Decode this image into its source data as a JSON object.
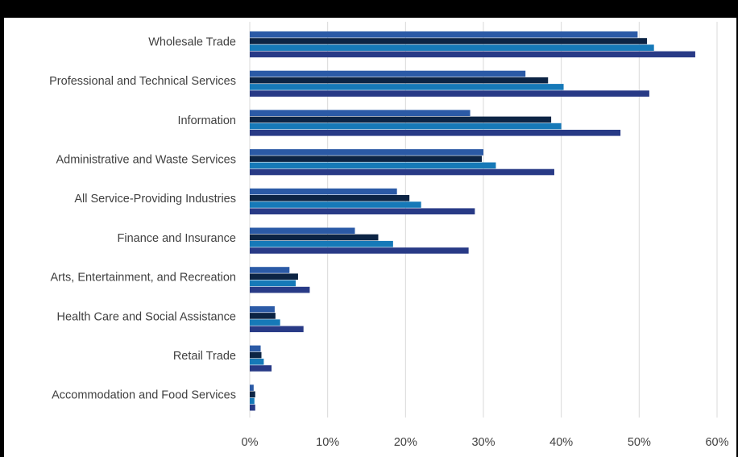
{
  "chart_data": {
    "type": "bar",
    "orientation": "horizontal",
    "title": "",
    "xlabel": "",
    "ylabel": "",
    "categories": [
      "Wholesale Trade",
      "Professional and Technical Services",
      "Information",
      "Administrative and Waste Services",
      "All Service-Providing Industries",
      "Finance and Insurance",
      "Arts, Entertainment, and Recreation",
      "Health Care and Social Assistance",
      "Retail Trade",
      "Accommodation and Food Services"
    ],
    "series": [
      {
        "color": "#2b5aa6",
        "values": [
          49.8,
          35.4,
          28.3,
          30.0,
          18.9,
          13.5,
          5.1,
          3.2,
          1.4,
          0.5
        ]
      },
      {
        "color": "#0c2444",
        "values": [
          51.0,
          38.3,
          38.7,
          29.8,
          20.5,
          16.5,
          6.2,
          3.3,
          1.5,
          0.7
        ]
      },
      {
        "color": "#1679b8",
        "values": [
          51.9,
          40.3,
          40.0,
          31.6,
          22.0,
          18.4,
          5.9,
          3.9,
          1.8,
          0.6
        ]
      },
      {
        "color": "#283a86",
        "values": [
          57.2,
          51.3,
          47.6,
          39.1,
          28.9,
          28.1,
          7.7,
          6.9,
          2.8,
          0.7
        ]
      }
    ],
    "xlim": [
      0,
      60
    ],
    "xticks": [
      "0%",
      "10%",
      "20%",
      "30%",
      "40%",
      "50%",
      "60%"
    ],
    "grid": true,
    "legend": "none"
  }
}
